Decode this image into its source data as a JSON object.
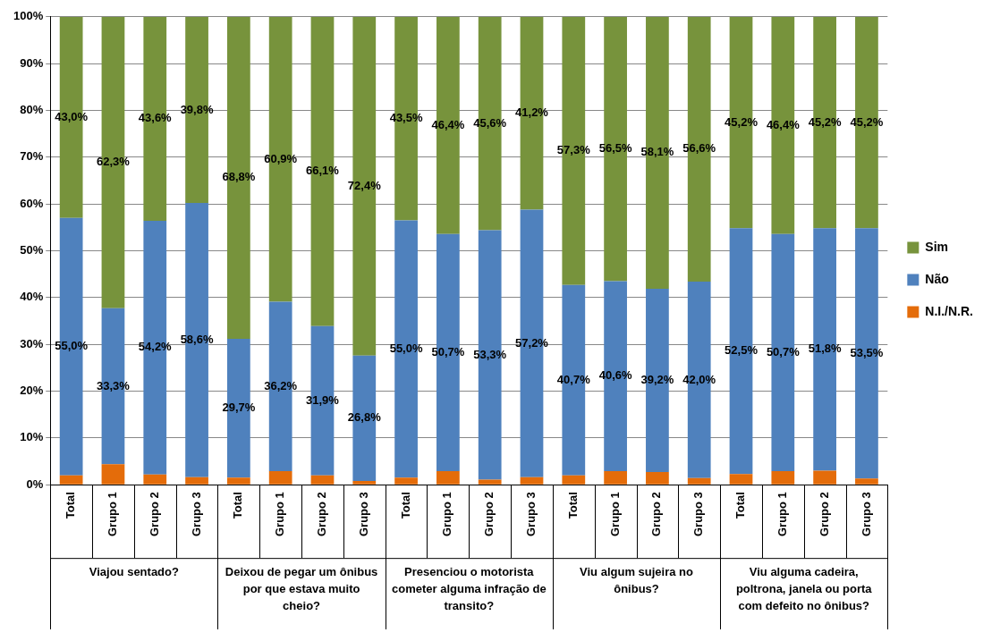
{
  "chart_data": {
    "type": "bar",
    "stacked": true,
    "categories": [
      "Total",
      "Grupo 1",
      "Grupo 2",
      "Grupo 3",
      "Total",
      "Grupo 1",
      "Grupo 2",
      "Grupo 3",
      "Total",
      "Grupo 1",
      "Grupo 2",
      "Grupo 3",
      "Total",
      "Grupo 1",
      "Grupo 2",
      "Grupo 3",
      "Total",
      "Grupo 1",
      "Grupo 2",
      "Grupo 3"
    ],
    "annotations": [
      "Viajou sentado?",
      "Deixou de pegar um ônibus por que estava muito cheio?",
      "Presenciou o motorista cometer alguma infração de transito?",
      "Viu algum sujeira no ônibus?",
      "Viu alguma cadeira, poltrona, janela ou porta com defeito no ônibus?"
    ],
    "series": [
      {
        "name": "N.I./N.R.",
        "color": "#e46c0a",
        "values": [
          2.0,
          4.4,
          2.2,
          1.6,
          1.5,
          2.9,
          2.0,
          0.8,
          1.5,
          2.9,
          1.1,
          1.6,
          2.0,
          2.9,
          2.7,
          1.4,
          2.3,
          2.9,
          3.0,
          1.3
        ]
      },
      {
        "name": "Não",
        "color": "#4f81bd",
        "values": [
          55.0,
          33.3,
          54.2,
          58.6,
          29.7,
          36.2,
          31.9,
          26.8,
          55.0,
          50.7,
          53.3,
          57.2,
          40.7,
          40.6,
          39.2,
          42.0,
          52.5,
          50.7,
          51.8,
          53.5
        ],
        "value_labels": [
          "55,0%",
          "33,3%",
          "54,2%",
          "58,6%",
          "29,7%",
          "36,2%",
          "31,9%",
          "26,8%",
          "55,0%",
          "50,7%",
          "53,3%",
          "57,2%",
          "40,7%",
          "40,6%",
          "39,2%",
          "42,0%",
          "52,5%",
          "50,7%",
          "51,8%",
          "53,5%"
        ]
      },
      {
        "name": "Sim",
        "color": "#77933c",
        "values": [
          43.0,
          62.3,
          43.6,
          39.8,
          68.8,
          60.9,
          66.1,
          72.4,
          43.5,
          46.4,
          45.6,
          41.2,
          57.3,
          56.5,
          58.1,
          56.6,
          45.2,
          46.4,
          45.2,
          45.2
        ],
        "value_labels": [
          "43,0%",
          "62,3%",
          "43,6%",
          "39,8%",
          "68,8%",
          "60,9%",
          "66,1%",
          "72,4%",
          "43,5%",
          "46,4%",
          "45,6%",
          "41,2%",
          "57,3%",
          "56,5%",
          "58,1%",
          "56,6%",
          "45,2%",
          "46,4%",
          "45,2%",
          "45,2%"
        ]
      }
    ],
    "ylim": [
      0,
      100
    ],
    "yticks": [
      {
        "value": 0,
        "label": "0%"
      },
      {
        "value": 10,
        "label": "10%"
      },
      {
        "value": 20,
        "label": "20%"
      },
      {
        "value": 30,
        "label": "30%"
      },
      {
        "value": 40,
        "label": "40%"
      },
      {
        "value": 50,
        "label": "50%"
      },
      {
        "value": 60,
        "label": "60%"
      },
      {
        "value": 70,
        "label": "70%"
      },
      {
        "value": 80,
        "label": "80%"
      },
      {
        "value": 90,
        "label": "90%"
      },
      {
        "value": 100,
        "label": "100%"
      }
    ],
    "grid": "y",
    "legend": "right"
  }
}
